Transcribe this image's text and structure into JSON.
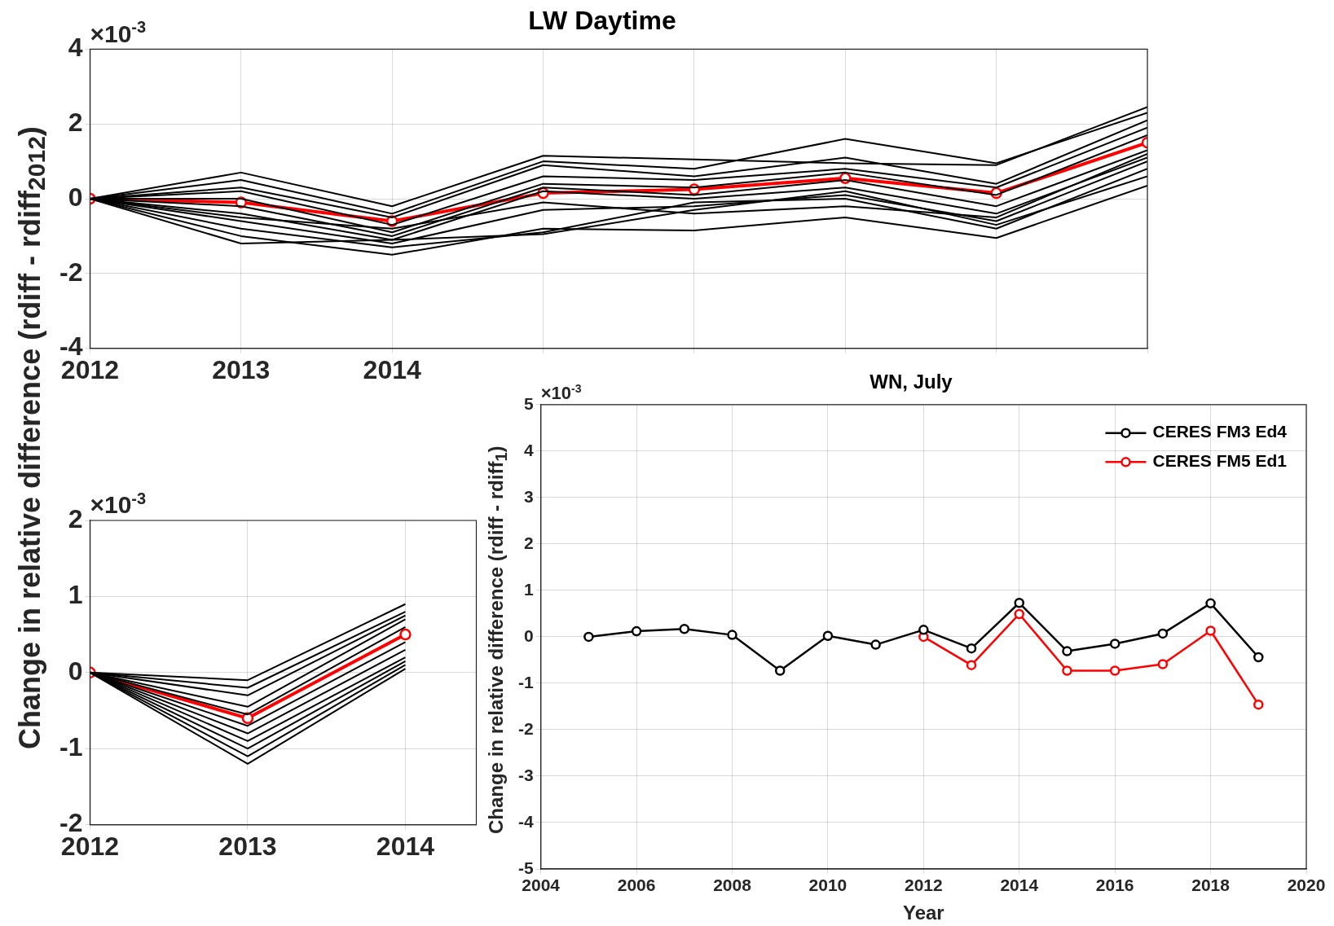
{
  "chart_data": [
    {
      "type": "line",
      "title": "LW Daytime",
      "ylabel": "Change in relative difference (rdiff - rdiff$_{2012}$)",
      "annotations": [
        "×10$^{-3}$"
      ],
      "x": [
        2012,
        2013,
        2014,
        2015,
        2016,
        2017,
        2018,
        2019
      ],
      "xlim": [
        2012,
        2019
      ],
      "xticks": [
        2012,
        2013,
        2014,
        {
          "value": 2015,
          "label": null
        },
        {
          "value": 2016,
          "label": null
        },
        {
          "value": 2017,
          "label": null
        },
        {
          "value": 2018,
          "label": null
        },
        {
          "value": 2019,
          "label": null
        }
      ],
      "ylim": [
        -4,
        4
      ],
      "yticks": [
        -4,
        -2,
        0,
        2,
        4
      ],
      "grid": true,
      "legend": false,
      "series": [
        {
          "color": "#000000",
          "values": [
            0,
            0.7,
            -0.2,
            1.15,
            1.05,
            0.95,
            0.9,
            2.45
          ]
        },
        {
          "color": "#000000",
          "values": [
            0,
            0.5,
            -0.4,
            1.0,
            0.8,
            1.6,
            0.95,
            2.3
          ]
        },
        {
          "color": "#000000",
          "values": [
            0,
            0.3,
            -0.5,
            0.9,
            0.6,
            1.1,
            0.4,
            2.1
          ]
        },
        {
          "color": "#000000",
          "values": [
            0,
            0.2,
            -0.7,
            0.6,
            0.5,
            0.8,
            0.3,
            1.9
          ]
        },
        {
          "color": "#000000",
          "values": [
            0,
            0.0,
            -0.9,
            0.4,
            0.3,
            0.7,
            0.1,
            1.7
          ]
        },
        {
          "color": "#000000",
          "values": [
            0,
            -0.2,
            -1.0,
            0.3,
            0.1,
            0.5,
            -0.2,
            1.3
          ]
        },
        {
          "color": "#000000",
          "values": [
            0,
            -0.4,
            -1.1,
            0.2,
            0.0,
            0.3,
            -0.4,
            1.1
          ]
        },
        {
          "color": "#000000",
          "values": [
            0,
            -0.6,
            -1.2,
            -0.3,
            -0.2,
            0.1,
            -0.6,
            1.0
          ]
        },
        {
          "color": "#000000",
          "values": [
            0,
            -0.8,
            -1.3,
            -0.9,
            -0.1,
            0.0,
            -0.8,
            0.8
          ]
        },
        {
          "color": "#000000",
          "values": [
            0,
            -1.0,
            -1.5,
            -0.8,
            -0.85,
            -0.5,
            -1.05,
            0.35
          ]
        },
        {
          "color": "#000000",
          "values": [
            0,
            -1.2,
            -1.1,
            -0.95,
            -0.3,
            0.2,
            -0.7,
            0.6
          ]
        },
        {
          "color": "#000000",
          "values": [
            0,
            -0.5,
            -0.8,
            -0.1,
            -0.4,
            -0.2,
            -0.5,
            1.2
          ]
        },
        {
          "color": "#ff0000",
          "marker": "circle",
          "values": [
            0,
            -0.1,
            -0.6,
            0.15,
            0.25,
            0.55,
            0.15,
            1.5
          ]
        }
      ]
    },
    {
      "type": "line",
      "annotations": [
        "×10$^{-3}$"
      ],
      "x": [
        2012,
        2013,
        2014
      ],
      "xlim": [
        2012,
        2014.45
      ],
      "xticks": [
        2012,
        2013,
        2014
      ],
      "ylim": [
        -2,
        2
      ],
      "yticks": [
        -2,
        -1,
        0,
        1,
        2
      ],
      "grid": true,
      "legend": false,
      "series": [
        {
          "color": "#000000",
          "values": [
            0,
            -0.1,
            0.9
          ]
        },
        {
          "color": "#000000",
          "values": [
            0,
            -0.2,
            0.8
          ]
        },
        {
          "color": "#000000",
          "values": [
            0,
            -0.3,
            0.75
          ]
        },
        {
          "color": "#000000",
          "values": [
            0,
            -0.45,
            0.7
          ]
        },
        {
          "color": "#000000",
          "values": [
            0,
            -0.55,
            0.6
          ]
        },
        {
          "color": "#000000",
          "values": [
            0,
            -0.7,
            0.4
          ]
        },
        {
          "color": "#000000",
          "values": [
            0,
            -0.8,
            0.3
          ]
        },
        {
          "color": "#000000",
          "values": [
            0,
            -0.9,
            0.2
          ]
        },
        {
          "color": "#000000",
          "values": [
            0,
            -1.0,
            0.15
          ]
        },
        {
          "color": "#000000",
          "values": [
            0,
            -1.1,
            0.1
          ]
        },
        {
          "color": "#000000",
          "values": [
            0,
            -1.2,
            0.05
          ]
        },
        {
          "color": "#ff0000",
          "marker": "circle",
          "values": [
            0,
            -0.6,
            0.5
          ]
        }
      ]
    },
    {
      "type": "line",
      "title": "WN, July",
      "xlabel": "Year",
      "ylabel": "Change in relative difference (rdiff - rdiff$_{1}$)",
      "annotations": [
        "×10$^{-3}$"
      ],
      "xlim": [
        2004,
        2020
      ],
      "xticks": [
        2004,
        2006,
        2008,
        2010,
        2012,
        2014,
        2016,
        2018,
        2020
      ],
      "ylim": [
        -5,
        5
      ],
      "yticks": [
        -5,
        -4,
        -3,
        -2,
        -1,
        0,
        1,
        2,
        3,
        4,
        5
      ],
      "grid": true,
      "legend": "top right",
      "marker": "circle",
      "series": [
        {
          "name": "CERES FM3 Ed4",
          "color": "#000000",
          "x": [
            2005,
            2006,
            2007,
            2008,
            2009,
            2010,
            2011,
            2012,
            2013,
            2014,
            2015,
            2016,
            2017,
            2018,
            2019
          ],
          "values": [
            0,
            0.12,
            0.17,
            0.04,
            -0.73,
            0.02,
            -0.17,
            0.15,
            -0.25,
            0.73,
            -0.31,
            -0.15,
            0.07,
            0.72,
            -0.44
          ]
        },
        {
          "name": "CERES FM5 Ed1",
          "color": "#ff0000",
          "x": [
            2012,
            2013,
            2014,
            2015,
            2016,
            2017,
            2018,
            2019
          ],
          "values": [
            0,
            -0.61,
            0.49,
            -0.73,
            -0.73,
            -0.59,
            0.13,
            -1.46
          ]
        }
      ]
    }
  ]
}
